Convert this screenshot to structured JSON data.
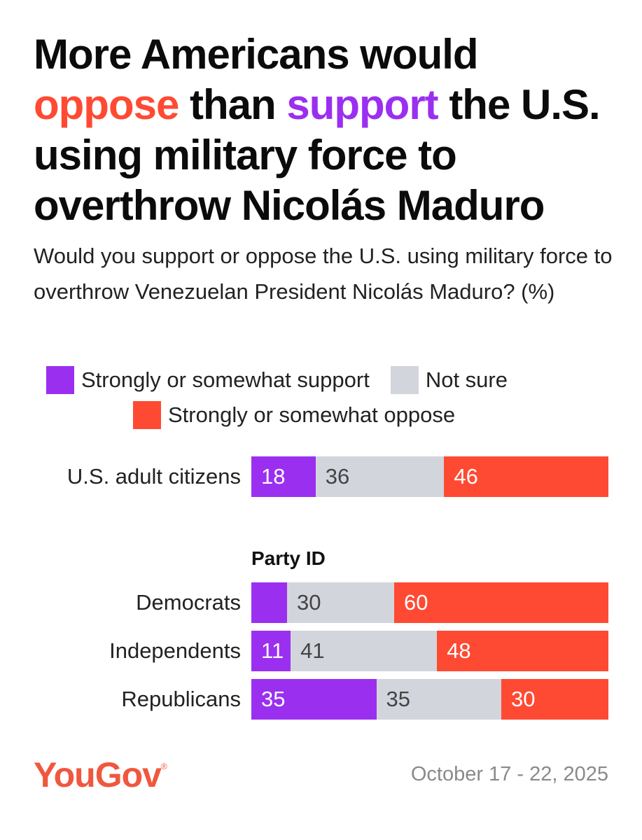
{
  "colors": {
    "support": "#9b2ff0",
    "not_sure": "#d3d5dd",
    "oppose": "#ff4a33",
    "support_text": "#ffffff",
    "not_sure_text": "#444444",
    "oppose_text": "#ffffff",
    "logo": "#f0573f"
  },
  "title": {
    "line1": "More Americans would",
    "oppose_word": "oppose",
    "middle": " than ",
    "support_word": "support",
    "after": " the U.S. using military force to overthrow Nicolás Maduro"
  },
  "subtitle": "Would you support or oppose the U.S. using military force to overthrow Venezuelan President Nicolás Maduro? (%)",
  "legend": {
    "support": "Strongly or somewhat support",
    "not_sure": "Not sure",
    "oppose": "Strongly or somewhat oppose"
  },
  "group_header": "Party ID",
  "chart_data": {
    "type": "bar",
    "orientation": "horizontal-stacked-100",
    "title": "More Americans would oppose than support the U.S. using military force to overthrow Nicolás Maduro",
    "subtitle": "Would you support or oppose the U.S. using military force to overthrow Venezuelan President Nicolás Maduro? (%)",
    "categories": [
      "U.S. adult citizens",
      "Democrats",
      "Independents",
      "Republicans"
    ],
    "series": [
      {
        "name": "Strongly or somewhat support",
        "values": [
          18,
          10,
          11,
          35
        ]
      },
      {
        "name": "Not sure",
        "values": [
          36,
          30,
          41,
          35
        ]
      },
      {
        "name": "Strongly or somewhat oppose",
        "values": [
          46,
          60,
          48,
          30
        ]
      }
    ],
    "value_labels": [
      [
        "18",
        "36",
        "46"
      ],
      [
        "",
        "30",
        "60"
      ],
      [
        "11",
        "41",
        "48"
      ],
      [
        "35",
        "35",
        "30"
      ]
    ],
    "xlim": [
      0,
      100
    ],
    "legend_position": "top"
  },
  "footer": {
    "logo": "YouGov",
    "logo_mark": "®",
    "date": "October 17 - 22, 2025"
  }
}
